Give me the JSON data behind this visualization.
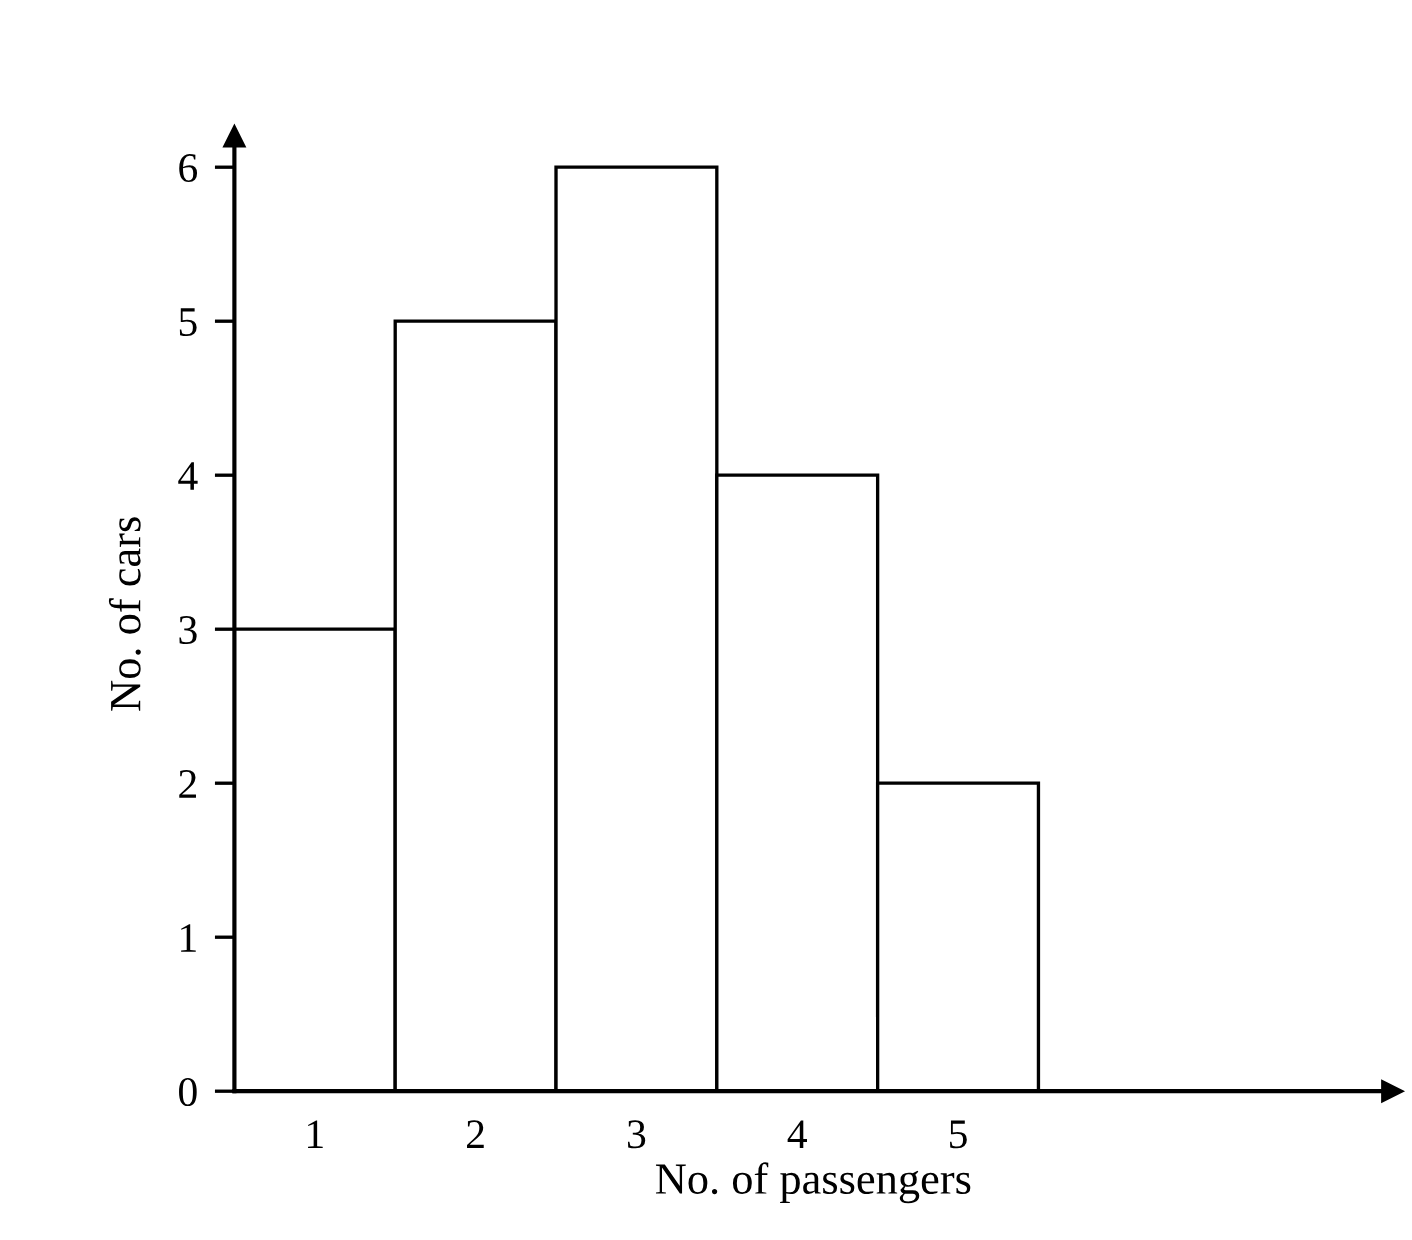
{
  "chart_data": {
    "type": "bar",
    "xlabel": "No. of passengers",
    "ylabel": "No. of cars",
    "categories": [
      "1",
      "2",
      "3",
      "4",
      "5"
    ],
    "values": [
      3,
      5,
      6,
      4,
      2
    ],
    "color": "#ffffff",
    "ylim": [
      0,
      6.2
    ],
    "yticks": [
      0,
      1,
      2,
      3,
      4,
      5,
      6
    ],
    "grid": false
  }
}
